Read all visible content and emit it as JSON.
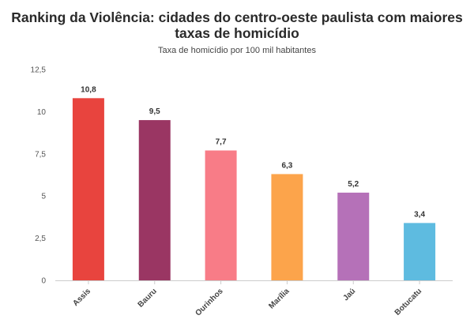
{
  "chart_data": {
    "type": "bar",
    "title": "Ranking da Violência: cidades do centro-oeste paulista com maiores taxas de homicídio",
    "subtitle": "Taxa de homicídio por 100 mil habitantes",
    "categories": [
      "Assis",
      "Bauru",
      "Ourinhos",
      "Marília",
      "Jaú",
      "Botucatu"
    ],
    "values": [
      10.8,
      9.5,
      7.7,
      6.3,
      5.2,
      3.4
    ],
    "value_labels": [
      "10,8",
      "9,5",
      "7,7",
      "6,3",
      "5,2",
      "3,4"
    ],
    "colors": [
      "#e8443e",
      "#9a3663",
      "#f87c87",
      "#fca44b",
      "#b571b8",
      "#5ebbe0"
    ],
    "ylim": [
      0,
      12.5
    ],
    "yticks": [
      0,
      2.5,
      5,
      7.5,
      10,
      12.5
    ],
    "ytick_labels": [
      "0",
      "2,5",
      "5",
      "7,5",
      "10",
      "12,5"
    ],
    "xlabel": "",
    "ylabel": "",
    "grid": false,
    "legend": "none"
  }
}
